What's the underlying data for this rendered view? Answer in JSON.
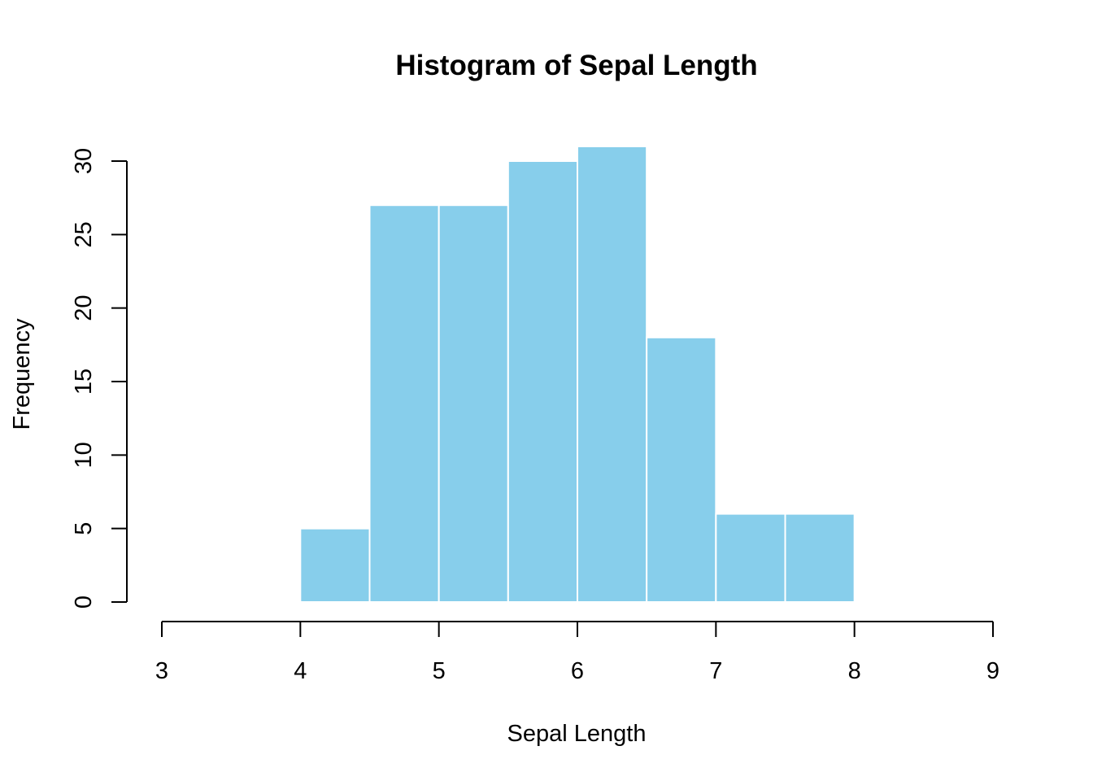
{
  "chart_data": {
    "type": "bar",
    "subtype": "histogram",
    "title": "Histogram of Sepal Length",
    "xlabel": "Sepal Length",
    "ylabel": "Frequency",
    "bins": [
      {
        "start": 4.0,
        "end": 4.5,
        "count": 5
      },
      {
        "start": 4.5,
        "end": 5.0,
        "count": 27
      },
      {
        "start": 5.0,
        "end": 5.5,
        "count": 27
      },
      {
        "start": 5.5,
        "end": 6.0,
        "count": 30
      },
      {
        "start": 6.0,
        "end": 6.5,
        "count": 31
      },
      {
        "start": 6.5,
        "end": 7.0,
        "count": 18
      },
      {
        "start": 7.0,
        "end": 7.5,
        "count": 6
      },
      {
        "start": 7.5,
        "end": 8.0,
        "count": 6
      }
    ],
    "xlim": [
      3,
      9
    ],
    "ylim": [
      0,
      31
    ],
    "x_ticks": [
      "3",
      "4",
      "5",
      "6",
      "7",
      "8",
      "9"
    ],
    "y_ticks": [
      "0",
      "5",
      "10",
      "15",
      "20",
      "25",
      "30"
    ],
    "bar_color": "#87CEEB",
    "bar_border_color": "#ffffff",
    "grid": false,
    "legend": false
  }
}
